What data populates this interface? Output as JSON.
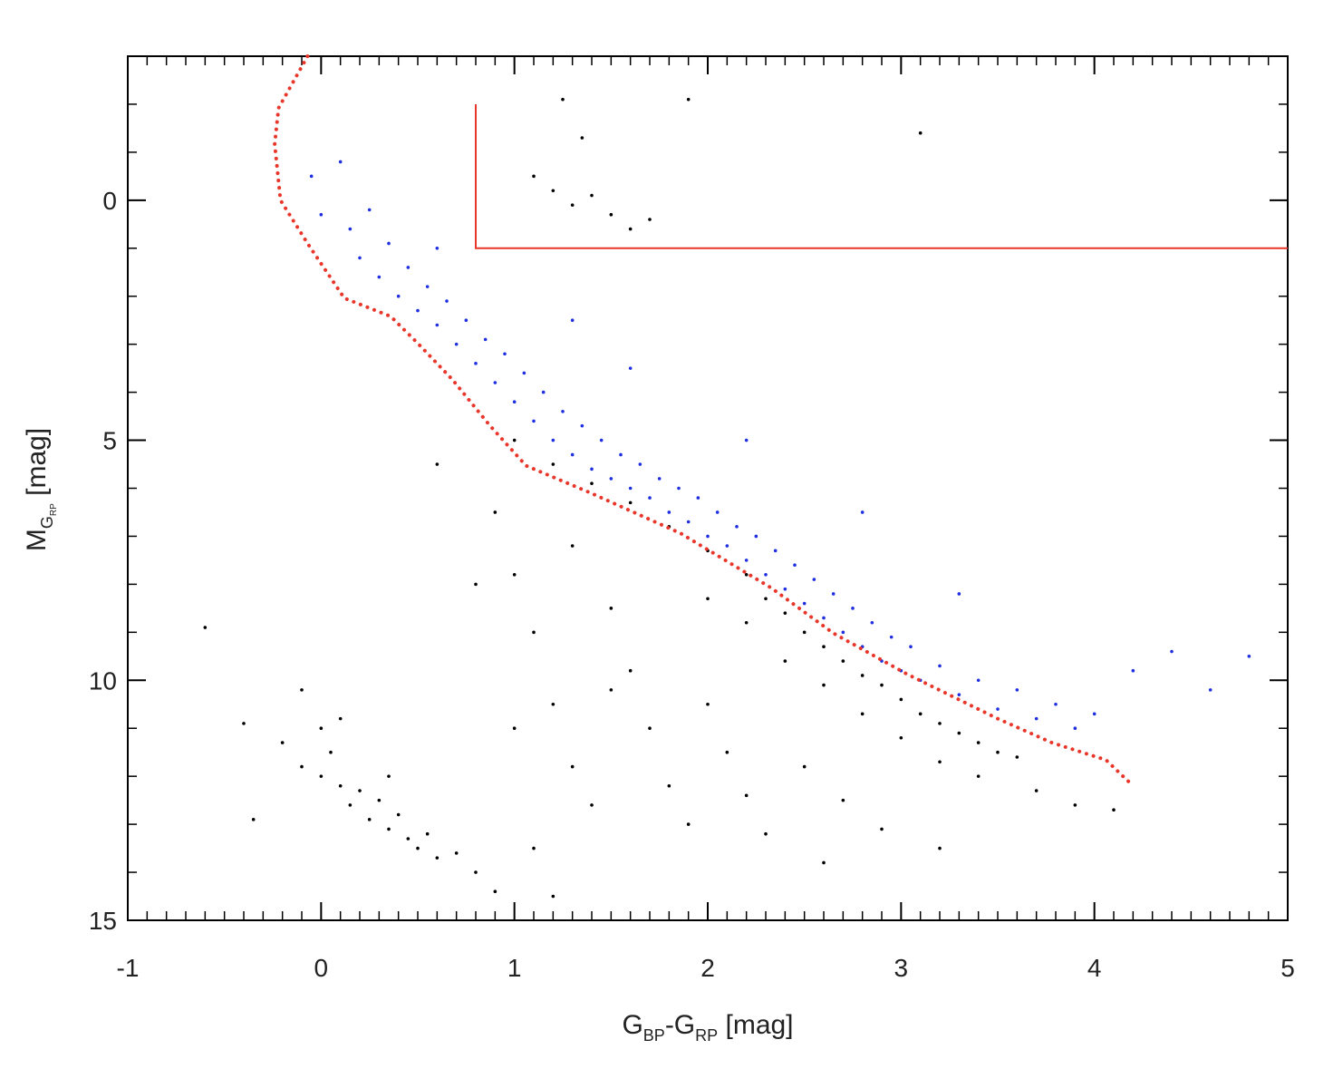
{
  "chart_data": {
    "type": "scatter",
    "xlabel_parts": [
      "G",
      "BP",
      "-G",
      "RP",
      " [mag]"
    ],
    "ylabel_parts": [
      "M",
      "G",
      "RP",
      " [mag]"
    ],
    "xlim": [
      -1,
      5
    ],
    "ylim": [
      -3,
      15
    ],
    "y_inverted": true,
    "xticks": [
      -1,
      0,
      1,
      2,
      3,
      4,
      5
    ],
    "yticks": [
      0,
      5,
      10,
      15
    ],
    "x_minor_step": 0.1,
    "y_minor_step": 1,
    "series": [
      {
        "color": "#000000",
        "x": [
          1.2,
          1.3,
          1.4,
          1.5,
          1.6,
          1.1,
          1.35,
          1.7,
          1.25,
          1.9,
          3.1,
          1.0,
          1.2,
          1.4,
          1.6,
          1.8,
          2.0,
          2.2,
          2.3,
          2.4,
          2.5,
          2.6,
          2.7,
          2.8,
          2.9,
          3.0,
          3.1,
          3.2,
          3.3,
          3.4,
          3.5,
          3.6,
          2.6,
          2.8,
          3.0,
          3.2,
          2.4,
          2.2,
          2.0,
          3.4,
          3.7,
          3.9,
          4.1,
          0.9,
          1.0,
          1.1,
          1.2,
          1.3,
          1.4,
          1.5,
          1.6,
          1.7,
          1.8,
          1.9,
          2.0,
          2.1,
          2.2,
          2.3,
          2.5,
          2.7,
          2.9,
          1.3,
          1.5,
          0.8,
          1.0,
          1.1,
          2.6,
          3.2,
          0.6,
          -0.4,
          -0.2,
          -0.1,
          0.0,
          0.05,
          0.1,
          0.15,
          0.2,
          0.25,
          0.3,
          0.35,
          0.4,
          0.45,
          0.5,
          0.55,
          0.6,
          0.7,
          0.8,
          0.0,
          0.1,
          -0.35,
          -0.6,
          0.9,
          0.35,
          -0.1,
          1.2
        ],
        "y": [
          -0.2,
          0.1,
          -0.1,
          0.3,
          0.6,
          -0.5,
          -1.3,
          0.4,
          -2.1,
          -2.1,
          -1.4,
          5.0,
          5.5,
          5.9,
          6.3,
          6.8,
          7.3,
          7.8,
          8.3,
          8.6,
          9.0,
          9.3,
          9.6,
          9.9,
          10.1,
          10.4,
          10.7,
          10.9,
          11.1,
          11.3,
          11.5,
          11.6,
          10.1,
          10.7,
          11.2,
          11.7,
          9.6,
          8.8,
          8.3,
          12.0,
          12.3,
          12.6,
          12.7,
          6.5,
          7.8,
          9.0,
          10.5,
          11.8,
          12.6,
          8.5,
          9.8,
          11.0,
          12.2,
          13.0,
          10.5,
          11.5,
          12.4,
          13.2,
          11.8,
          12.5,
          13.1,
          7.2,
          10.2,
          8.0,
          11.0,
          13.5,
          13.8,
          13.5,
          5.5,
          10.9,
          11.3,
          11.8,
          12.0,
          11.5,
          12.2,
          12.6,
          12.3,
          12.9,
          12.5,
          13.1,
          12.8,
          13.3,
          13.5,
          13.2,
          13.7,
          13.6,
          14.0,
          11.0,
          10.8,
          12.9,
          8.9,
          14.4,
          12.0,
          10.2,
          14.5
        ]
      },
      {
        "color": "#1f2fe0",
        "x": [
          -0.05,
          0.0,
          0.1,
          0.15,
          0.2,
          0.25,
          0.3,
          0.35,
          0.4,
          0.45,
          0.5,
          0.55,
          0.6,
          0.65,
          0.7,
          0.75,
          0.8,
          0.85,
          0.9,
          0.95,
          1.0,
          1.05,
          1.1,
          1.15,
          1.2,
          1.25,
          1.3,
          1.35,
          1.4,
          1.45,
          1.5,
          1.55,
          1.6,
          1.65,
          1.7,
          1.75,
          1.8,
          1.85,
          1.9,
          1.95,
          2.0,
          2.05,
          2.1,
          2.15,
          2.2,
          2.25,
          2.3,
          2.35,
          2.4,
          2.45,
          2.5,
          2.55,
          2.6,
          2.65,
          2.7,
          2.75,
          2.8,
          2.85,
          2.9,
          2.95,
          3.0,
          3.05,
          3.1,
          3.2,
          3.3,
          3.4,
          3.5,
          3.6,
          3.7,
          3.8,
          3.9,
          4.0,
          4.2,
          4.4,
          4.6,
          4.8,
          1.3,
          1.6,
          2.2,
          2.8,
          3.3,
          0.6
        ],
        "y": [
          -0.5,
          0.3,
          -0.8,
          0.6,
          1.2,
          0.2,
          1.6,
          0.9,
          2.0,
          1.4,
          2.3,
          1.8,
          2.6,
          2.1,
          3.0,
          2.5,
          3.4,
          2.9,
          3.8,
          3.2,
          4.2,
          3.6,
          4.6,
          4.0,
          5.0,
          4.4,
          5.3,
          4.7,
          5.6,
          5.0,
          5.8,
          5.3,
          6.0,
          5.5,
          6.2,
          5.8,
          6.5,
          6.0,
          6.7,
          6.2,
          7.0,
          6.5,
          7.2,
          6.8,
          7.5,
          7.0,
          7.8,
          7.3,
          8.1,
          7.6,
          8.4,
          7.9,
          8.7,
          8.2,
          9.0,
          8.5,
          9.3,
          8.8,
          9.6,
          9.1,
          9.8,
          9.3,
          10.0,
          9.7,
          10.3,
          10.0,
          10.6,
          10.2,
          10.8,
          10.5,
          11.0,
          10.7,
          9.8,
          9.4,
          10.2,
          9.5,
          2.5,
          3.5,
          5.0,
          6.5,
          8.2,
          1.0
        ]
      }
    ],
    "lines": [
      {
        "color": "#e8362a",
        "style": "dotted",
        "x": [
          -0.07,
          -0.22,
          -0.24,
          -0.21,
          -0.07,
          0.12,
          0.36,
          0.5,
          0.68,
          0.87,
          1.06,
          1.39,
          1.86,
          2.33,
          2.65,
          3.03,
          3.5,
          3.78,
          4.06,
          4.2
        ],
        "y": [
          -3,
          -1.92,
          -1.17,
          0,
          0.9,
          2.04,
          2.42,
          2.98,
          3.74,
          4.68,
          5.53,
          6.09,
          6.94,
          8.08,
          9.02,
          9.87,
          10.8,
          11.3,
          11.66,
          12.2
        ]
      },
      {
        "color": "#e8362a",
        "style": "solid",
        "x": [
          0.8,
          0.8,
          5
        ],
        "y": [
          -2,
          1,
          1
        ]
      }
    ]
  }
}
